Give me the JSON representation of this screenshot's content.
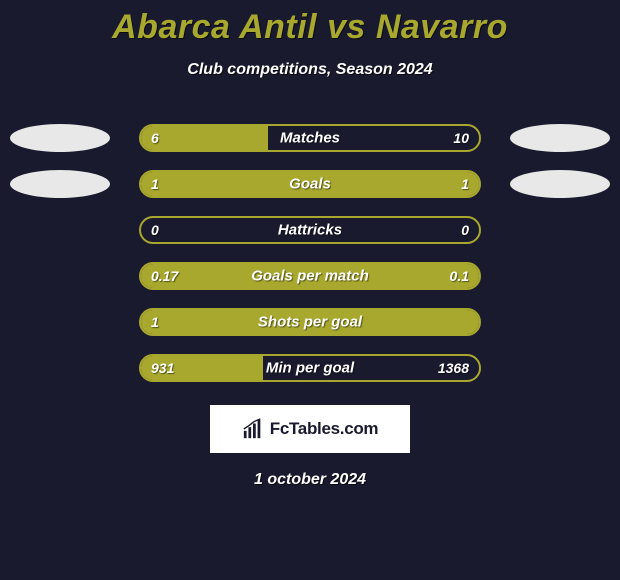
{
  "header": {
    "title": "Abarca Antil vs Navarro",
    "subtitle": "Club competitions, Season 2024",
    "title_color": "#a8a82e",
    "title_fontsize": 34,
    "subtitle_color": "#ffffff",
    "subtitle_fontsize": 16
  },
  "chart": {
    "type": "comparison-bars",
    "bar_fill_color": "#a8a82e",
    "bar_border_color": "#a8a82e",
    "track_width": 342,
    "track_height": 28,
    "label_color": "#ffffff",
    "label_fontsize": 15,
    "value_color": "#ffffff",
    "value_fontsize": 14,
    "background_color": "#1a1a2e",
    "ellipse_color": "#e8e8e8",
    "rows": [
      {
        "label": "Matches",
        "left": "6",
        "right": "10",
        "left_pct": 37.5,
        "right_pct": 0,
        "show_ellipses": true
      },
      {
        "label": "Goals",
        "left": "1",
        "right": "1",
        "left_pct": 50,
        "right_pct": 50,
        "show_ellipses": true
      },
      {
        "label": "Hattricks",
        "left": "0",
        "right": "0",
        "left_pct": 0,
        "right_pct": 0,
        "show_ellipses": false
      },
      {
        "label": "Goals per match",
        "left": "0.17",
        "right": "0.1",
        "left_pct": 63,
        "right_pct": 37,
        "show_ellipses": false
      },
      {
        "label": "Shots per goal",
        "left": "1",
        "right": "",
        "left_pct": 100,
        "right_pct": 0,
        "show_ellipses": false
      },
      {
        "label": "Min per goal",
        "left": "931",
        "right": "1368",
        "left_pct": 36,
        "right_pct": 0,
        "show_ellipses": false
      }
    ]
  },
  "branding": {
    "text": "FcTables.com",
    "background_color": "#ffffff",
    "text_color": "#1a1a2e"
  },
  "footer": {
    "date": "1 october 2024",
    "color": "#ffffff",
    "fontsize": 16
  }
}
